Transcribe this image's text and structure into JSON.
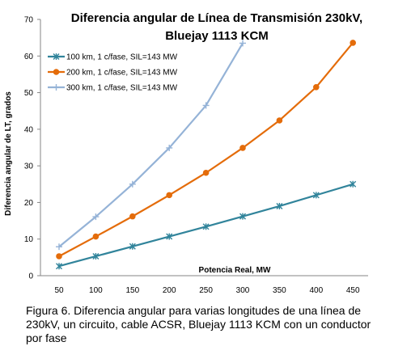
{
  "chart_data": {
    "type": "line",
    "title_lines": [
      "Diferencia  angular de Línea de Transmisión 230kV,",
      "Bluejay 1113 KCM"
    ],
    "xlabel": "Potencia Real, MW",
    "ylabel": "Diferencia angular de LT, grados",
    "categories": [
      "50",
      "100",
      "150",
      "200",
      "250",
      "300",
      "350",
      "400",
      "450"
    ],
    "ylim": [
      0,
      70
    ],
    "yticks": [
      "0",
      "10",
      "20",
      "30",
      "40",
      "50",
      "60",
      "70"
    ],
    "grid": false,
    "legend_position": "top-left",
    "series": [
      {
        "name": "100 km, 1 c/fase, SIL=143 MW",
        "values": [
          2.6,
          5.3,
          8.0,
          10.7,
          13.4,
          16.2,
          19.0,
          22.0,
          25.0
        ],
        "color": "#31849B",
        "marker": "star"
      },
      {
        "name": "200 km, 1 c/fase, SIL=143 MW",
        "values": [
          5.3,
          10.7,
          16.2,
          22.0,
          28.1,
          34.9,
          42.4,
          51.5,
          63.6
        ],
        "color": "#E46C0A",
        "marker": "circle"
      },
      {
        "name": "300 km, 1 c/fase, SIL=143 MW",
        "values": [
          7.9,
          16.1,
          25.0,
          34.9,
          46.5,
          63.5,
          null,
          null,
          null
        ],
        "color": "#95B3D7",
        "marker": "plus"
      }
    ]
  },
  "caption": "Figura 6. Diferencia angular para varias longitudes de una línea de 230kV, un circuito, cable ACSR, Bluejay 1113 KCM con un conductor por fase"
}
